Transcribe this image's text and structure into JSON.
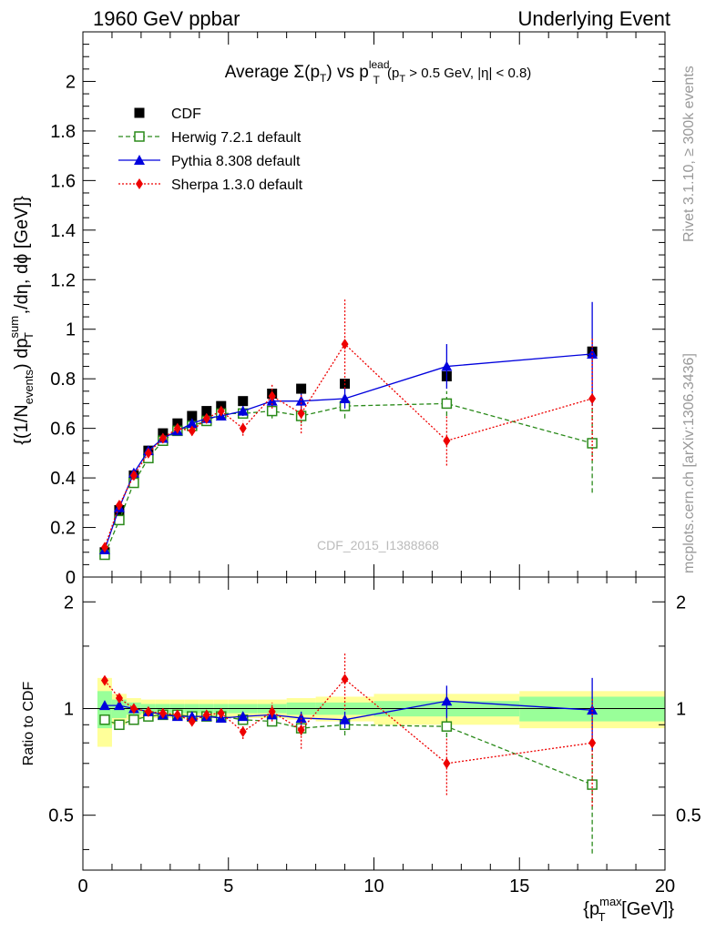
{
  "header": {
    "left": "1960 GeV ppbar",
    "right": "Underlying Event"
  },
  "side_labels": {
    "rivet": "Rivet 3.1.10, ≥ 300k events",
    "mcplots": "mcplots.cern.ch [arXiv:1306.3436]"
  },
  "watermark": "CDF_2015_I1388868",
  "chart_data": [
    {
      "type": "line",
      "title_parts": {
        "a": "Average ",
        "sigma": "Σ(p",
        "sub_t": "T",
        "b": ") vs p",
        "sup_lead": "lead",
        "sub_t2": "T",
        "c": " (p",
        "sub_t3": "T",
        "d": " > 0.5 GeV, |η| < 0.8)"
      },
      "ylabel_parts": {
        "a": "{(1/N",
        "sub_events": "events",
        "b": ") dp",
        "sup_sum": "sum",
        "sub_t": "T",
        "c": " ,/dη, dϕ [GeV]}"
      },
      "xlim": [
        0,
        20
      ],
      "ylim": [
        0,
        2.2
      ],
      "yticks": [
        "0",
        "0.2",
        "0.4",
        "0.6",
        "0.8",
        "1",
        "1.2",
        "1.4",
        "1.6",
        "1.8",
        "2"
      ],
      "legend_position": "top-left",
      "series": [
        {
          "name": "CDF",
          "color": "#000000",
          "marker": "square-filled",
          "x": [
            0.75,
            1.25,
            1.75,
            2.25,
            2.75,
            3.25,
            3.75,
            4.25,
            4.75,
            5.5,
            6.5,
            7.5,
            9.0,
            12.5,
            17.5
          ],
          "y": [
            0.1,
            0.27,
            0.41,
            0.51,
            0.58,
            0.62,
            0.65,
            0.67,
            0.69,
            0.71,
            0.74,
            0.76,
            0.78,
            0.81,
            0.91
          ]
        },
        {
          "name": "Herwig 7.2.1 default",
          "color": "#2a8a1a",
          "marker": "square-open",
          "x": [
            0.75,
            1.25,
            1.75,
            2.25,
            2.75,
            3.25,
            3.75,
            4.25,
            4.75,
            5.5,
            6.5,
            7.5,
            9.0,
            12.5,
            17.5
          ],
          "y": [
            0.09,
            0.23,
            0.38,
            0.48,
            0.55,
            0.59,
            0.61,
            0.63,
            0.66,
            0.66,
            0.67,
            0.65,
            0.69,
            0.7,
            0.54
          ],
          "err": [
            0.005,
            0.01,
            0.01,
            0.01,
            0.01,
            0.01,
            0.01,
            0.01,
            0.01,
            0.02,
            0.03,
            0.03,
            0.05,
            0.05,
            0.2
          ]
        },
        {
          "name": "Pythia 8.308 default",
          "color": "#0000dd",
          "marker": "triangle-filled",
          "x": [
            0.75,
            1.25,
            1.75,
            2.25,
            2.75,
            3.25,
            3.75,
            4.25,
            4.75,
            5.5,
            6.5,
            7.5,
            9.0,
            12.5,
            17.5
          ],
          "y": [
            0.11,
            0.28,
            0.42,
            0.51,
            0.56,
            0.59,
            0.62,
            0.64,
            0.65,
            0.67,
            0.71,
            0.71,
            0.72,
            0.85,
            0.9
          ],
          "err": [
            0.005,
            0.01,
            0.01,
            0.01,
            0.01,
            0.01,
            0.01,
            0.01,
            0.01,
            0.02,
            0.02,
            0.03,
            0.04,
            0.09,
            0.21
          ]
        },
        {
          "name": "Sherpa 1.3.0 default",
          "color": "#ee0000",
          "marker": "diamond-filled",
          "x": [
            0.75,
            1.25,
            1.75,
            2.25,
            2.75,
            3.25,
            3.75,
            4.25,
            4.75,
            5.5,
            6.5,
            7.5,
            9.0,
            12.5,
            17.5
          ],
          "y": [
            0.12,
            0.29,
            0.41,
            0.5,
            0.56,
            0.6,
            0.59,
            0.64,
            0.67,
            0.6,
            0.73,
            0.66,
            0.94,
            0.55,
            0.72
          ],
          "err": [
            0.01,
            0.01,
            0.01,
            0.01,
            0.02,
            0.02,
            0.02,
            0.02,
            0.02,
            0.03,
            0.05,
            0.08,
            0.18,
            0.1,
            0.25
          ]
        }
      ]
    },
    {
      "type": "line",
      "ylabel": "Ratio to CDF",
      "xlabel_parts": {
        "a": "{p",
        "sup_max": "max",
        "sub_t": "T",
        "b": " [GeV]}"
      },
      "xlim": [
        0,
        20
      ],
      "ylim": [
        0.35,
        2.35
      ],
      "log_y": true,
      "xticks": [
        "0",
        "5",
        "10",
        "15",
        "20"
      ],
      "yticks": [
        "0.5",
        "1",
        "2"
      ],
      "bands": {
        "edges": [
          0.5,
          1.0,
          1.5,
          2.0,
          2.5,
          3.0,
          3.5,
          4.0,
          4.5,
          5.0,
          6.0,
          7.0,
          8.0,
          10.0,
          15.0,
          20.0
        ],
        "stat_syst": [
          0.22,
          0.1,
          0.07,
          0.06,
          0.06,
          0.06,
          0.06,
          0.06,
          0.06,
          0.06,
          0.06,
          0.07,
          0.08,
          0.1,
          0.12
        ],
        "stat": [
          0.12,
          0.06,
          0.04,
          0.03,
          0.03,
          0.03,
          0.03,
          0.03,
          0.03,
          0.03,
          0.03,
          0.04,
          0.04,
          0.05,
          0.08
        ]
      },
      "series": [
        {
          "name": "Herwig 7.2.1 default",
          "color": "#2a8a1a",
          "marker": "square-open",
          "x": [
            0.75,
            1.25,
            1.75,
            2.25,
            2.75,
            3.25,
            3.75,
            4.25,
            4.75,
            5.5,
            6.5,
            7.5,
            9.0,
            12.5,
            17.5
          ],
          "y": [
            0.93,
            0.9,
            0.93,
            0.95,
            0.96,
            0.96,
            0.95,
            0.95,
            0.95,
            0.93,
            0.92,
            0.88,
            0.9,
            0.89,
            0.61
          ],
          "err": [
            0.02,
            0.02,
            0.01,
            0.01,
            0.01,
            0.01,
            0.01,
            0.01,
            0.01,
            0.02,
            0.03,
            0.04,
            0.06,
            0.06,
            0.22
          ]
        },
        {
          "name": "Pythia 8.308 default",
          "color": "#0000dd",
          "marker": "triangle-filled",
          "x": [
            0.75,
            1.25,
            1.75,
            2.25,
            2.75,
            3.25,
            3.75,
            4.25,
            4.75,
            5.5,
            6.5,
            7.5,
            9.0,
            12.5,
            17.5
          ],
          "y": [
            1.02,
            1.02,
            1.0,
            0.98,
            0.96,
            0.95,
            0.95,
            0.95,
            0.94,
            0.95,
            0.96,
            0.94,
            0.93,
            1.05,
            0.99
          ],
          "err": [
            0.02,
            0.02,
            0.01,
            0.01,
            0.01,
            0.01,
            0.01,
            0.01,
            0.01,
            0.02,
            0.03,
            0.04,
            0.05,
            0.11,
            0.23
          ]
        },
        {
          "name": "Sherpa 1.3.0 default",
          "color": "#ee0000",
          "marker": "diamond-filled",
          "x": [
            0.75,
            1.25,
            1.75,
            2.25,
            2.75,
            3.25,
            3.75,
            4.25,
            4.75,
            5.5,
            6.5,
            7.5,
            9.0,
            12.5,
            17.5
          ],
          "y": [
            1.2,
            1.07,
            1.0,
            0.98,
            0.97,
            0.96,
            0.92,
            0.96,
            0.97,
            0.86,
            0.98,
            0.87,
            1.21,
            0.7,
            0.8
          ],
          "err": [
            0.03,
            0.03,
            0.02,
            0.02,
            0.02,
            0.02,
            0.02,
            0.02,
            0.02,
            0.04,
            0.06,
            0.1,
            0.22,
            0.13,
            0.27
          ]
        }
      ]
    }
  ]
}
